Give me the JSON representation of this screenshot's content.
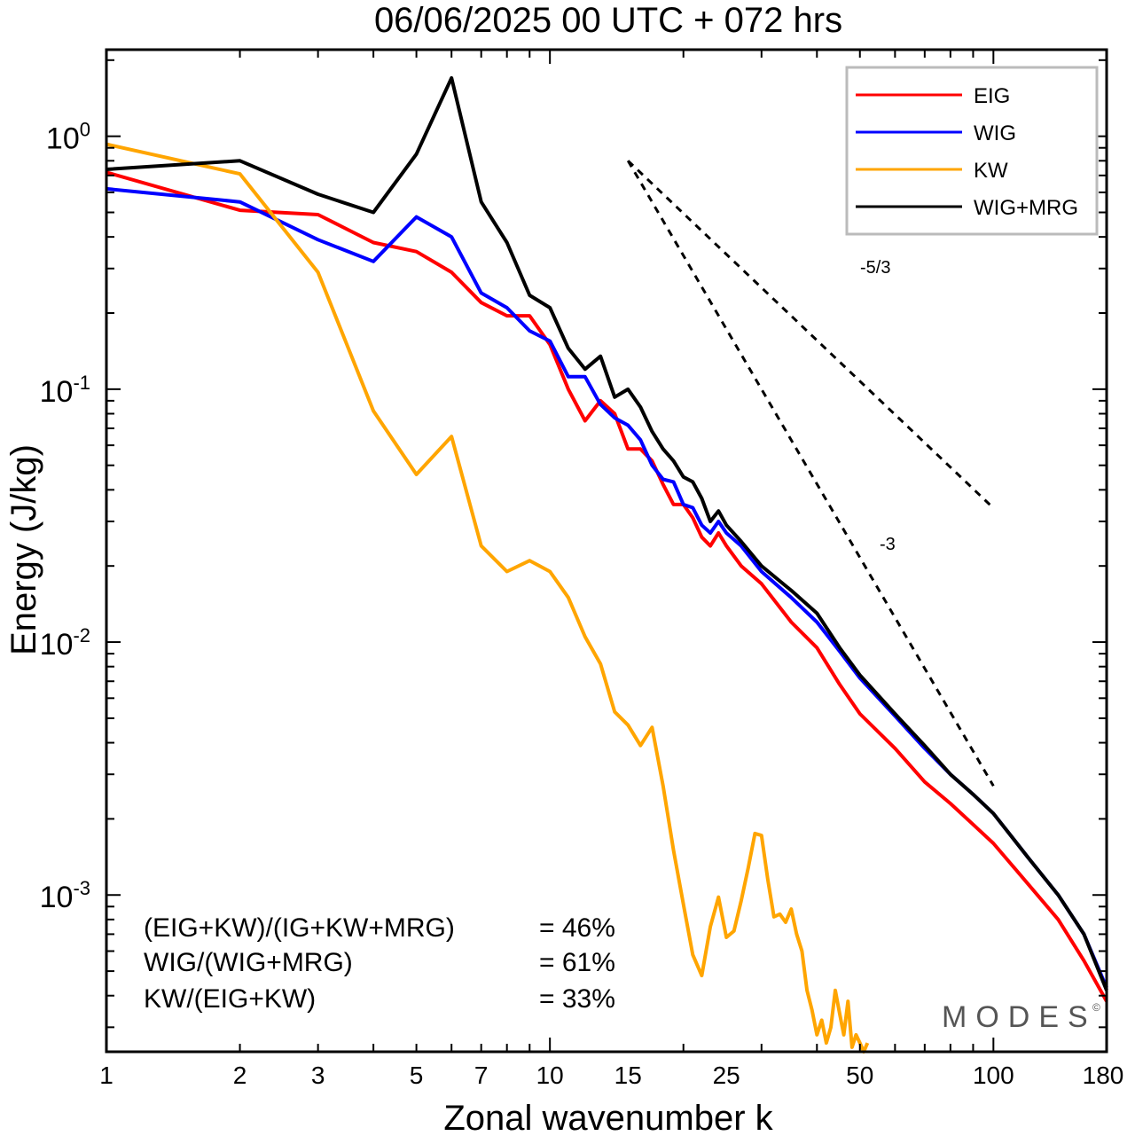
{
  "chart_data": {
    "type": "line",
    "title": "06/06/2025  00 UTC  + 072 hrs",
    "xlabel": "Zonal wavenumber k",
    "ylabel": "Energy (J/kg)",
    "xscale": "log",
    "yscale": "log",
    "xlim": [
      1,
      180
    ],
    "ylim": [
      0.00024,
      2.2
    ],
    "xticks": [
      1,
      2,
      3,
      5,
      7,
      10,
      15,
      25,
      50,
      100,
      180
    ],
    "xtick_labels": [
      "1",
      "2",
      "3",
      "5",
      "7",
      "10",
      "15",
      "25",
      "50",
      "100",
      "180"
    ],
    "yticks": [
      {
        "value": 1,
        "base": "10",
        "exp": "0"
      },
      {
        "value": 0.1,
        "base": "10",
        "exp": "-1"
      },
      {
        "value": 0.01,
        "base": "10",
        "exp": "-2"
      },
      {
        "value": 0.001,
        "base": "10",
        "exp": "-3"
      }
    ],
    "legend_position": "top-right",
    "series": [
      {
        "name": "EIG",
        "color": "#ff0000",
        "x": [
          1,
          2,
          3,
          4,
          5,
          6,
          7,
          8,
          9,
          10,
          11,
          12,
          13,
          14,
          15,
          16,
          17,
          18,
          19,
          20,
          21,
          22,
          23,
          24,
          25,
          27,
          30,
          35,
          40,
          45,
          50,
          60,
          70,
          80,
          90,
          100,
          120,
          140,
          160,
          180
        ],
        "y": [
          0.72,
          0.51,
          0.49,
          0.38,
          0.35,
          0.29,
          0.22,
          0.195,
          0.195,
          0.15,
          0.1,
          0.075,
          0.09,
          0.08,
          0.058,
          0.058,
          0.052,
          0.042,
          0.035,
          0.035,
          0.031,
          0.026,
          0.024,
          0.027,
          0.024,
          0.02,
          0.017,
          0.012,
          0.0095,
          0.0068,
          0.0052,
          0.0038,
          0.0028,
          0.0023,
          0.0019,
          0.0016,
          0.0011,
          0.0008,
          0.00055,
          0.00038
        ]
      },
      {
        "name": "WIG",
        "color": "#0000ff",
        "x": [
          1,
          2,
          3,
          4,
          5,
          6,
          7,
          8,
          9,
          10,
          11,
          12,
          13,
          14,
          15,
          16,
          17,
          18,
          19,
          20,
          21,
          22,
          23,
          24,
          25,
          27,
          30,
          35,
          40,
          45,
          50,
          60,
          70,
          80,
          90,
          100,
          120,
          140,
          160,
          180
        ],
        "y": [
          0.62,
          0.55,
          0.39,
          0.32,
          0.48,
          0.4,
          0.24,
          0.21,
          0.17,
          0.155,
          0.112,
          0.112,
          0.087,
          0.077,
          0.072,
          0.063,
          0.05,
          0.044,
          0.043,
          0.035,
          0.034,
          0.029,
          0.027,
          0.03,
          0.027,
          0.024,
          0.019,
          0.015,
          0.012,
          0.0092,
          0.0072,
          0.0051,
          0.0038,
          0.003,
          0.0025,
          0.0021,
          0.0014,
          0.001,
          0.0007,
          0.00043
        ]
      },
      {
        "name": "KW",
        "color": "#ffa500",
        "x": [
          1,
          2,
          3,
          4,
          5,
          6,
          7,
          8,
          9,
          10,
          11,
          12,
          13,
          14,
          15,
          16,
          17,
          18,
          19,
          20,
          21,
          22,
          23,
          24,
          25,
          26,
          27,
          28,
          29,
          30,
          31,
          32,
          33,
          34,
          35,
          36,
          37,
          38,
          39,
          40,
          41,
          42,
          43,
          44,
          45,
          46,
          47,
          48,
          49,
          50,
          51,
          52
        ],
        "y": [
          0.93,
          0.71,
          0.29,
          0.082,
          0.046,
          0.065,
          0.024,
          0.019,
          0.021,
          0.019,
          0.015,
          0.0105,
          0.0082,
          0.0053,
          0.0047,
          0.0039,
          0.0046,
          0.0027,
          0.0015,
          0.00092,
          0.00058,
          0.00048,
          0.00075,
          0.00098,
          0.00068,
          0.00072,
          0.00095,
          0.00128,
          0.00175,
          0.00172,
          0.00115,
          0.00082,
          0.00084,
          0.00078,
          0.00088,
          0.0007,
          0.0006,
          0.00042,
          0.00035,
          0.00028,
          0.00032,
          0.00026,
          0.0003,
          0.00042,
          0.00034,
          0.00028,
          0.00038,
          0.00025,
          0.00028,
          0.00026,
          0.00024,
          0.00026
        ]
      },
      {
        "name": "WIG+MRG",
        "color": "#000000",
        "x": [
          1,
          2,
          3,
          4,
          5,
          6,
          7,
          8,
          9,
          10,
          11,
          12,
          13,
          14,
          15,
          16,
          17,
          18,
          19,
          20,
          21,
          22,
          23,
          24,
          25,
          27,
          30,
          35,
          40,
          45,
          50,
          60,
          70,
          80,
          90,
          100,
          120,
          140,
          160,
          180
        ],
        "y": [
          0.74,
          0.8,
          0.59,
          0.5,
          0.85,
          1.7,
          0.55,
          0.38,
          0.235,
          0.21,
          0.145,
          0.12,
          0.135,
          0.093,
          0.1,
          0.085,
          0.068,
          0.058,
          0.052,
          0.045,
          0.043,
          0.037,
          0.03,
          0.033,
          0.029,
          0.025,
          0.02,
          0.016,
          0.013,
          0.0095,
          0.0074,
          0.0052,
          0.0039,
          0.003,
          0.0025,
          0.0021,
          0.0014,
          0.001,
          0.0007,
          0.00042
        ]
      }
    ],
    "reference_lines": [
      {
        "label": "-5/3",
        "slope": -1.6667,
        "k0": 15,
        "e0": 0.8,
        "k1": 100
      },
      {
        "label": "-3",
        "slope": -3,
        "k0": 15,
        "e0": 0.8,
        "k1": 100
      }
    ],
    "annotations": [
      {
        "lhs": "(EIG+KW)/(IG+KW+MRG)",
        "rhs": "= 46%"
      },
      {
        "lhs": "WIG/(WIG+MRG)",
        "rhs": "= 61%"
      },
      {
        "lhs": "KW/(EIG+KW)",
        "rhs": "= 33%"
      }
    ],
    "watermark": "MODES",
    "watermark_mark": "©"
  }
}
